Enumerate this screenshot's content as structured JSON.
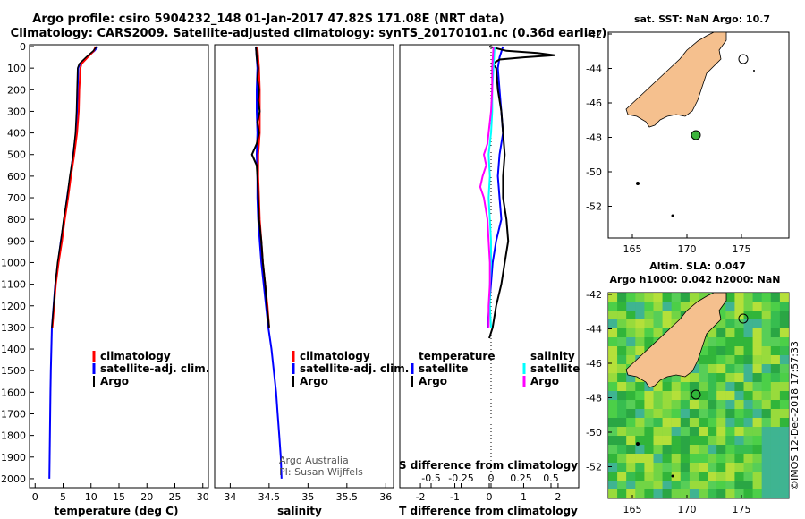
{
  "title": {
    "line1": "Argo profile: csiro 5904232_148 01-Jan-2017 47.82S 171.08E (NRT data)",
    "line2": "Climatology: CARS2009. Satellite-adjusted climatology: synTS_20170101.nc (0.36d earlier)"
  },
  "colors": {
    "climatology": "#ff0000",
    "satellite": "#0000ff",
    "argo": "#000000",
    "sal_satellite": "#00ffff",
    "sal_argo": "#ff00ff",
    "land": "#f5c08e",
    "sla_sea": "#3cc83c"
  },
  "chart_data": [
    {
      "type": "line",
      "title": "",
      "xlabel": "temperature (deg C)",
      "ylabel": "",
      "xlim": [
        -1,
        31
      ],
      "ylim": [
        2050,
        0
      ],
      "xticks": [
        "0",
        "5",
        "10",
        "15",
        "20",
        "25",
        "30"
      ],
      "yticks": [
        "0",
        "100",
        "200",
        "300",
        "400",
        "500",
        "600",
        "700",
        "800",
        "900",
        "1000",
        "1100",
        "1200",
        "1300",
        "1400",
        "1500",
        "1600",
        "1700",
        "1800",
        "1900",
        "2000"
      ],
      "legend": [
        "climatology",
        "satellite-adj. clim.",
        "Argo"
      ],
      "series": [
        {
          "name": "climatology",
          "depth": [
            0,
            20,
            50,
            80,
            100,
            200,
            300,
            400,
            500,
            600,
            700,
            800,
            900,
            1000,
            1100,
            1200,
            1300
          ],
          "values": [
            10.8,
            10.5,
            9.4,
            8.3,
            8.1,
            7.9,
            7.8,
            7.5,
            7.0,
            6.4,
            5.9,
            5.3,
            4.8,
            4.2,
            3.7,
            3.4,
            3.1
          ]
        },
        {
          "name": "satellite-adj. clim.",
          "depth": [
            0,
            20,
            50,
            80,
            100,
            200,
            300,
            400,
            500,
            600,
            700,
            800,
            900,
            1000,
            1100,
            1200,
            1300,
            1400,
            1500,
            1600,
            1700,
            1800,
            1900,
            2000
          ],
          "values": [
            11.2,
            10.6,
            9.2,
            8.0,
            7.7,
            7.6,
            7.5,
            7.3,
            6.8,
            6.3,
            5.7,
            5.2,
            4.6,
            4.1,
            3.6,
            3.3,
            3.0,
            2.9,
            2.8,
            2.75,
            2.7,
            2.65,
            2.6,
            2.55
          ]
        },
        {
          "name": "Argo",
          "depth": [
            0,
            20,
            50,
            80,
            100,
            200,
            300,
            400,
            500,
            600,
            700,
            800,
            900,
            1000,
            1100,
            1200,
            1300
          ],
          "values": [
            11.0,
            10.4,
            9.1,
            7.9,
            7.6,
            7.5,
            7.4,
            7.2,
            6.8,
            6.2,
            5.7,
            5.1,
            4.6,
            4.0,
            3.6,
            3.3,
            3.0
          ]
        }
      ]
    },
    {
      "type": "line",
      "title": "",
      "xlabel": "salinity",
      "ylabel": "",
      "xlim": [
        33.8,
        36.1
      ],
      "ylim": [
        2050,
        0
      ],
      "xticks": [
        "34",
        "34.5",
        "35",
        "35.5",
        "36"
      ],
      "legend": [
        "climatology",
        "satellite-adj. clim.",
        "Argo"
      ],
      "series": [
        {
          "name": "climatology",
          "depth": [
            0,
            100,
            200,
            300,
            400,
            500,
            600,
            700,
            800,
            900,
            1000,
            1100,
            1200,
            1300
          ],
          "values": [
            34.35,
            34.37,
            34.38,
            34.38,
            34.38,
            34.36,
            34.36,
            34.37,
            34.38,
            34.4,
            34.42,
            34.45,
            34.48,
            34.5
          ]
        },
        {
          "name": "satellite-adj. clim.",
          "depth": [
            0,
            100,
            200,
            300,
            400,
            500,
            600,
            700,
            800,
            900,
            1000,
            1100,
            1200,
            1300,
            1400,
            1500,
            1600,
            1700,
            1800,
            1900,
            2000
          ],
          "values": [
            34.33,
            34.35,
            34.34,
            34.34,
            34.35,
            34.34,
            34.35,
            34.35,
            34.36,
            34.38,
            34.4,
            34.43,
            34.46,
            34.49,
            34.53,
            34.56,
            34.59,
            34.61,
            34.63,
            34.65,
            34.66
          ]
        },
        {
          "name": "Argo",
          "depth": [
            0,
            50,
            100,
            150,
            200,
            250,
            300,
            350,
            400,
            450,
            500,
            550,
            600,
            700,
            800,
            900,
            1000,
            1100,
            1200,
            1300
          ],
          "values": [
            34.33,
            34.34,
            34.36,
            34.35,
            34.37,
            34.36,
            34.38,
            34.35,
            34.37,
            34.34,
            34.28,
            34.34,
            34.35,
            34.36,
            34.37,
            34.4,
            34.42,
            34.45,
            34.47,
            34.5
          ]
        }
      ],
      "annotations": [
        "Argo Australia",
        "PI: Susan Wijffels"
      ]
    },
    {
      "type": "line",
      "title": "",
      "xlabel": "T difference from climatology",
      "x2label": "S difference from climatology",
      "ylabel": "",
      "xlim": [
        -2.6,
        2.6
      ],
      "ylim": [
        2050,
        0
      ],
      "xticks": [
        "-2",
        "-1",
        "0",
        "1",
        "2"
      ],
      "x2ticks": [
        "-0.5",
        "-0.25",
        "0",
        "0.25",
        "0.5"
      ],
      "legend_left_title": "temperature",
      "legend_right_title": "salinity",
      "legend_left": [
        "satellite",
        "Argo"
      ],
      "legend_right": [
        "satellite",
        "Argo"
      ],
      "series": [
        {
          "name": "T satellite",
          "depth": [
            0,
            50,
            100,
            200,
            300,
            400,
            500,
            600,
            700,
            800,
            900,
            1000,
            1100,
            1200,
            1300
          ],
          "values": [
            0.4,
            0.3,
            0.25,
            0.3,
            0.35,
            0.4,
            0.3,
            0.25,
            0.3,
            0.35,
            0.2,
            0.1,
            0.05,
            0.0,
            -0.05
          ]
        },
        {
          "name": "T Argo",
          "depth": [
            0,
            20,
            30,
            40,
            50,
            60,
            80,
            100,
            200,
            300,
            400,
            500,
            600,
            700,
            800,
            900,
            1000,
            1100,
            1200,
            1300,
            1350
          ],
          "values": [
            0.0,
            0.5,
            1.4,
            1.9,
            1.0,
            0.3,
            0.1,
            0.2,
            0.25,
            0.35,
            0.4,
            0.45,
            0.4,
            0.4,
            0.5,
            0.55,
            0.45,
            0.35,
            0.2,
            0.1,
            0.0
          ]
        },
        {
          "name": "S satellite",
          "depth": [
            0,
            100,
            200,
            300,
            400,
            500,
            600,
            700,
            800,
            900,
            1000,
            1100,
            1200,
            1300
          ],
          "values": [
            0.03,
            0.02,
            0.01,
            0.01,
            0.0,
            -0.02,
            -0.01,
            -0.02,
            -0.01,
            0.0,
            0.0,
            -0.01,
            -0.01,
            0.0
          ]
        },
        {
          "name": "S Argo",
          "depth": [
            0,
            100,
            200,
            300,
            400,
            450,
            500,
            550,
            600,
            650,
            700,
            800,
            900,
            1000,
            1100,
            1200,
            1300
          ],
          "values": [
            0.02,
            0.01,
            0.01,
            0.0,
            -0.02,
            -0.03,
            -0.06,
            -0.04,
            -0.07,
            -0.09,
            -0.06,
            -0.03,
            -0.02,
            -0.01,
            -0.01,
            -0.02,
            -0.02
          ]
        }
      ]
    }
  ],
  "map_sst": {
    "title": "sat. SST: NaN Argo: 10.7",
    "xticks": [
      "165",
      "170",
      "175"
    ],
    "yticks": [
      "-42",
      "-44",
      "-46",
      "-48",
      "-50",
      "-52"
    ]
  },
  "map_sla": {
    "title1": "Altim. SLA: 0.047",
    "title2": "Argo h1000: 0.042 h2000: NaN",
    "xticks": [
      "165",
      "170",
      "175"
    ],
    "yticks": [
      "-42",
      "-44",
      "-46",
      "-48",
      "-50",
      "-52"
    ]
  },
  "float_position": {
    "lon": 171.08,
    "lat": -47.82
  },
  "credit": "©IMOS 12-Dec-2018 17:57:33"
}
